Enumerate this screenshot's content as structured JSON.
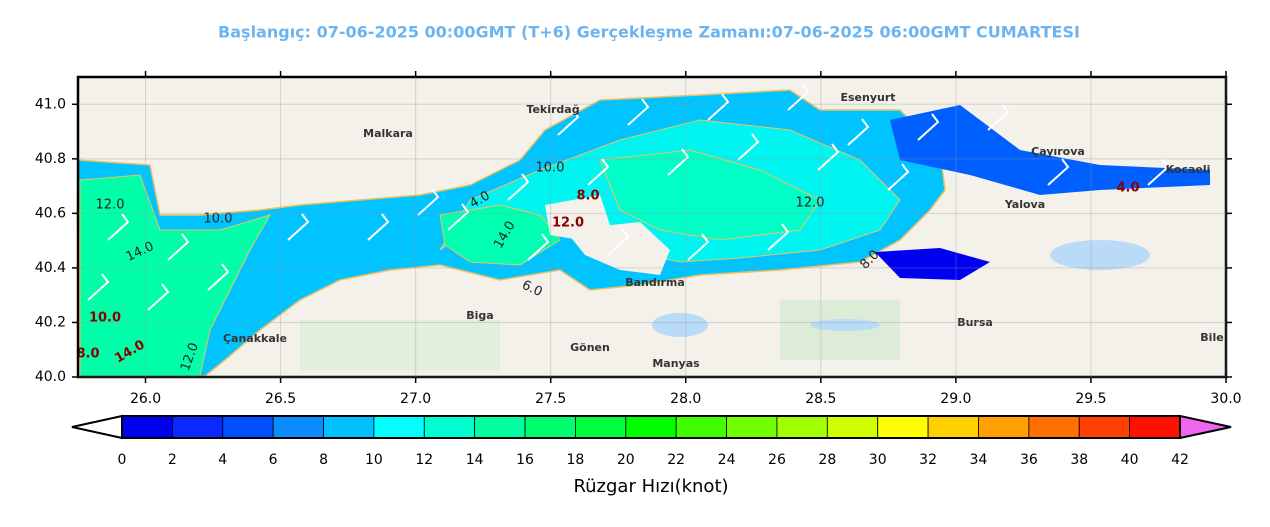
{
  "header": {
    "title": "Başlangıç: 07-06-2025 00:00GMT (T+6)   Gerçekleşme Zamanı:07-06-2025 06:00GMT CUMARTESI"
  },
  "map": {
    "xlim": [
      25.75,
      30.0
    ],
    "ylim": [
      40.0,
      41.1
    ],
    "xticks": [
      {
        "value": 26,
        "label": "26.0"
      },
      {
        "value": 26.5,
        "label": "26.5"
      },
      {
        "value": 27,
        "label": "27.0"
      },
      {
        "value": 27.5,
        "label": "27.5"
      },
      {
        "value": 28,
        "label": "28.0"
      },
      {
        "value": 28.5,
        "label": "28.5"
      },
      {
        "value": 29,
        "label": "29.0"
      },
      {
        "value": 29.5,
        "label": "29.5"
      },
      {
        "value": 30,
        "label": "30.0"
      }
    ],
    "yticks": [
      {
        "value": 40,
        "label": "40.0"
      },
      {
        "value": 40.2,
        "label": "40.2"
      },
      {
        "value": 40.4,
        "label": "40.4"
      },
      {
        "value": 40.6,
        "label": "40.6"
      },
      {
        "value": 40.8,
        "label": "40.8"
      },
      {
        "value": 41,
        "label": "41.0"
      }
    ],
    "places": [
      "Tekirdağ",
      "Yalova",
      "Bursa",
      "Çanakkale",
      "Bandırma",
      "Kocaeli",
      "Gönen",
      "Manyas",
      "Biga",
      "Çayırova",
      "Esenyurt",
      "Malkara",
      "Bile"
    ],
    "contour_labels": [
      "10.0",
      "12.0",
      "14.0",
      "8.0",
      "6.0",
      "4.0",
      "10.0",
      "12.0",
      "14.0",
      "12.0",
      "10.0",
      "8.0",
      "4.0",
      "8.0",
      "14.0",
      "12.0"
    ],
    "colorbar": {
      "ticks": [
        0,
        2,
        4,
        6,
        8,
        10,
        12,
        14,
        16,
        18,
        20,
        22,
        24,
        26,
        28,
        30,
        32,
        34,
        36,
        38,
        40,
        42
      ],
      "colors": [
        "#0000f0",
        "#0a28ff",
        "#0050ff",
        "#0a8cff",
        "#00c0ff",
        "#00ffff",
        "#00ffd0",
        "#00ffa0",
        "#00ff70",
        "#00ff40",
        "#00ff00",
        "#40ff00",
        "#70ff00",
        "#a0ff00",
        "#d0ff00",
        "#ffff00",
        "#ffd000",
        "#ffa000",
        "#ff7000",
        "#ff4000",
        "#ff1000"
      ],
      "label": "Rüzgar Hızı(knot)"
    }
  }
}
